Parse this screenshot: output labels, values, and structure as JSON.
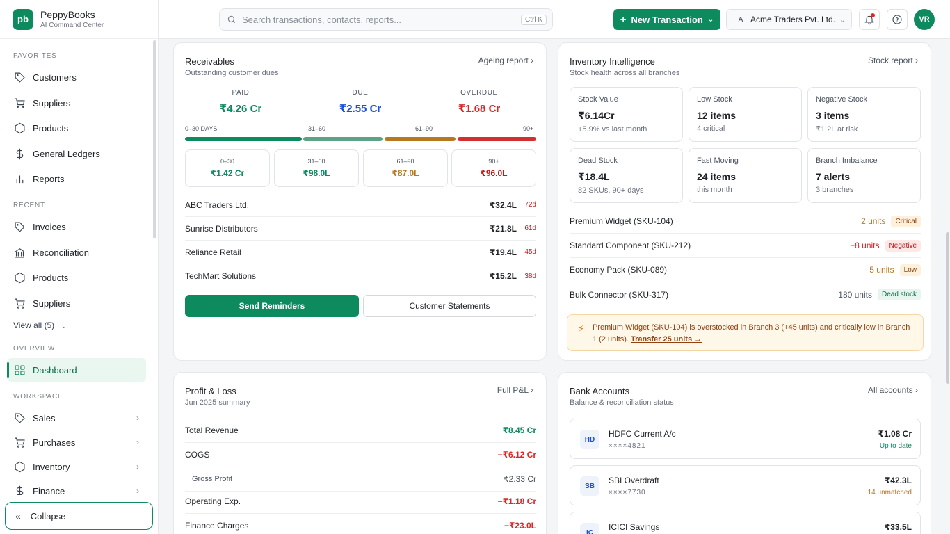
{
  "brand": {
    "logo": "pb",
    "name": "PeppyBooks",
    "subtitle": "AI Command Center"
  },
  "sidebar": {
    "favorites_label": "FAVORITES",
    "favorites": [
      {
        "label": "Customers",
        "icon": "tag-icon"
      },
      {
        "label": "Suppliers",
        "icon": "cart-icon"
      },
      {
        "label": "Products",
        "icon": "hexagon-icon"
      },
      {
        "label": "General Ledgers",
        "icon": "dollar-icon"
      },
      {
        "label": "Reports",
        "icon": "bar-chart-icon"
      }
    ],
    "recent_label": "RECENT",
    "recent": [
      {
        "label": "Invoices",
        "icon": "tag-icon"
      },
      {
        "label": "Reconciliation",
        "icon": "bank-icon"
      },
      {
        "label": "Products",
        "icon": "hexagon-icon"
      },
      {
        "label": "Suppliers",
        "icon": "cart-icon"
      }
    ],
    "view_all": "View all (5)",
    "overview_label": "OVERVIEW",
    "dashboard": "Dashboard",
    "workspace_label": "WORKSPACE",
    "workspace": [
      {
        "label": "Sales",
        "icon": "tag-icon"
      },
      {
        "label": "Purchases",
        "icon": "cart-icon"
      },
      {
        "label": "Inventory",
        "icon": "hexagon-icon"
      },
      {
        "label": "Finance",
        "icon": "dollar-icon"
      }
    ],
    "collapse": "Collapse"
  },
  "topbar": {
    "search_placeholder": "Search transactions, contacts, reports...",
    "search_shortcut": "Ctrl K",
    "new_transaction": "New Transaction",
    "org_initial": "A",
    "org_name": "Acme Traders Pvt. Ltd.",
    "user_initials": "VR"
  },
  "receivables": {
    "title": "Receivables",
    "subtitle": "Outstanding customer dues",
    "link": "Ageing report",
    "paid_label": "PAID",
    "paid": "₹4.26 Cr",
    "due_label": "DUE",
    "due": "₹2.55 Cr",
    "overdue_label": "OVERDUE",
    "overdue": "₹1.68 Cr",
    "ageing_labels": [
      "0–30 DAYS",
      "31–60",
      "61–90",
      "90+"
    ],
    "buckets": [
      {
        "label": "0–30",
        "value": "₹1.42 Cr"
      },
      {
        "label": "31–60",
        "value": "₹98.0L"
      },
      {
        "label": "61–90",
        "value": "₹87.0L"
      },
      {
        "label": "90+",
        "value": "₹96.0L"
      }
    ],
    "customers": [
      {
        "name": "ABC Traders Ltd.",
        "amount": "₹32.4L",
        "days": "72d"
      },
      {
        "name": "Sunrise Distributors",
        "amount": "₹21.8L",
        "days": "61d"
      },
      {
        "name": "Reliance Retail",
        "amount": "₹19.4L",
        "days": "45d"
      },
      {
        "name": "TechMart Solutions",
        "amount": "₹15.2L",
        "days": "38d"
      }
    ],
    "send_reminders": "Send Reminders",
    "customer_statements": "Customer Statements"
  },
  "inventory": {
    "title": "Inventory Intelligence",
    "subtitle": "Stock health across all branches",
    "link": "Stock report",
    "tiles": [
      {
        "label": "Stock Value",
        "value": "₹6.14Cr",
        "sub": "+5.9% vs last month"
      },
      {
        "label": "Low Stock",
        "value": "12 items",
        "sub": "4 critical"
      },
      {
        "label": "Negative Stock",
        "value": "3 items",
        "sub": "₹1.2L at risk"
      },
      {
        "label": "Dead Stock",
        "value": "₹18.4L",
        "sub": "82 SKUs, 90+ days"
      },
      {
        "label": "Fast Moving",
        "value": "24 items",
        "sub": "this month"
      },
      {
        "label": "Branch Imbalance",
        "value": "7 alerts",
        "sub": "3 branches"
      }
    ],
    "items": [
      {
        "name": "Premium Widget (SKU-104)",
        "units": "2 units",
        "badge": "Critical"
      },
      {
        "name": "Standard Component (SKU-212)",
        "units": "−8 units",
        "badge": "Negative"
      },
      {
        "name": "Economy Pack (SKU-089)",
        "units": "5 units",
        "badge": "Low"
      },
      {
        "name": "Bulk Connector (SKU-317)",
        "units": "180 units",
        "badge": "Dead stock"
      }
    ],
    "alert_text": "Premium Widget (SKU-104) is overstocked in Branch 3 (+45 units) and critically low in Branch 1 (2 units). ",
    "alert_link": "Transfer 25 units →"
  },
  "pl": {
    "title": "Profit & Loss",
    "subtitle": "Jun 2025 summary",
    "link": "Full P&L",
    "rows": [
      {
        "label": "Total Revenue",
        "value": "₹8.45 Cr"
      },
      {
        "label": "COGS",
        "value": "−₹6.12 Cr"
      },
      {
        "label": "Gross Profit",
        "value": "₹2.33 Cr"
      },
      {
        "label": "Operating Exp.",
        "value": "−₹1.18 Cr"
      },
      {
        "label": "Finance Charges",
        "value": "−₹23.0L"
      }
    ]
  },
  "bank": {
    "title": "Bank Accounts",
    "subtitle": "Balance & reconciliation status",
    "link": "All accounts",
    "accounts": [
      {
        "initials": "HD",
        "name": "HDFC Current A/c",
        "acc": "××××4821",
        "amount": "₹1.08 Cr",
        "status": "Up to date"
      },
      {
        "initials": "SB",
        "name": "SBI Overdraft",
        "acc": "××××7730",
        "amount": "₹42.3L",
        "status": "14 unmatched"
      },
      {
        "initials": "IC",
        "name": "ICICI Savings",
        "acc": "",
        "amount": "₹33.5L",
        "status": ""
      }
    ]
  },
  "colors": {
    "brand": "#0e8a5f",
    "due": "#1d4ed8",
    "overdue": "#dc2626",
    "warning": "#b7791f"
  }
}
